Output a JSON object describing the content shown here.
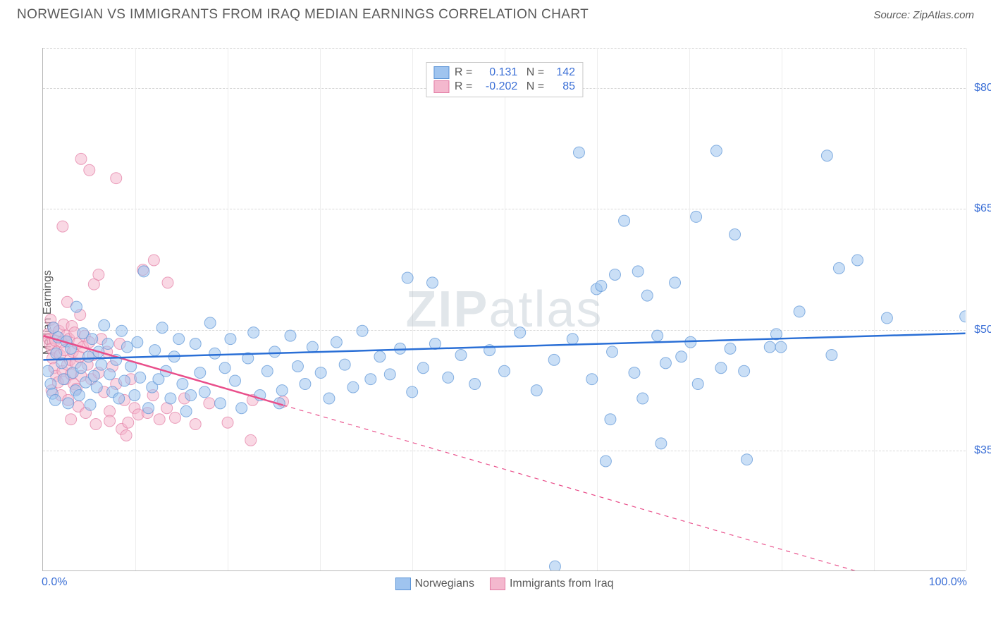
{
  "title": "NORWEGIAN VS IMMIGRANTS FROM IRAQ MEDIAN EARNINGS CORRELATION CHART",
  "source": "Source: ZipAtlas.com",
  "watermark_a": "ZIP",
  "watermark_b": "atlas",
  "chart": {
    "type": "scatter",
    "ylabel": "Median Earnings",
    "xlim": [
      0,
      100
    ],
    "ylim": [
      20000,
      85000
    ],
    "x_ticks_minor": [
      0,
      10,
      20,
      30,
      40,
      50,
      60,
      70,
      80,
      90,
      100
    ],
    "y_ticks": [
      35000,
      50000,
      65000,
      80000
    ],
    "y_tick_labels": [
      "$35,000",
      "$50,000",
      "$65,000",
      "$80,000"
    ],
    "x_min_label": "0.0%",
    "x_max_label": "100.0%",
    "background_color": "#ffffff",
    "grid_color_h": "#d8d8d8",
    "grid_color_v": "#ededed",
    "axis_color": "#b8b8b8",
    "tick_label_color": "#3b6fd6",
    "marker_radius": 8,
    "marker_opacity": 0.55,
    "trend_line_width": 2.5,
    "series": [
      {
        "name": "Norwegians",
        "color_fill": "#9fc4ef",
        "color_stroke": "#5a93d6",
        "trend_color": "#2a6fd6",
        "trend_dash": "none",
        "R": "0.131",
        "N": "142",
        "trend": {
          "x1": 0,
          "y1": 46200,
          "x2": 100,
          "y2": 49500
        },
        "points": [
          [
            0.5,
            44800
          ],
          [
            0.8,
            43200
          ],
          [
            1.0,
            42000
          ],
          [
            1.1,
            50200
          ],
          [
            1.3,
            41200
          ],
          [
            1.4,
            47000
          ],
          [
            1.6,
            49000
          ],
          [
            2.0,
            45800
          ],
          [
            2.2,
            43800
          ],
          [
            2.5,
            48500
          ],
          [
            2.7,
            40800
          ],
          [
            3.0,
            47600
          ],
          [
            3.2,
            44600
          ],
          [
            3.5,
            42400
          ],
          [
            3.6,
            52800
          ],
          [
            3.9,
            41800
          ],
          [
            4.1,
            45200
          ],
          [
            4.3,
            49500
          ],
          [
            4.6,
            43400
          ],
          [
            4.9,
            46600
          ],
          [
            5.1,
            40600
          ],
          [
            5.3,
            48800
          ],
          [
            5.5,
            44200
          ],
          [
            5.8,
            42800
          ],
          [
            6.0,
            47200
          ],
          [
            6.3,
            45600
          ],
          [
            6.6,
            50500
          ],
          [
            7.0,
            48200
          ],
          [
            7.2,
            44400
          ],
          [
            7.5,
            42200
          ],
          [
            7.9,
            46200
          ],
          [
            8.2,
            41400
          ],
          [
            8.5,
            49800
          ],
          [
            8.8,
            43600
          ],
          [
            9.1,
            47800
          ],
          [
            9.5,
            45400
          ],
          [
            9.9,
            41800
          ],
          [
            10.2,
            48400
          ],
          [
            10.5,
            44000
          ],
          [
            10.9,
            57200
          ],
          [
            11.4,
            40200
          ],
          [
            11.8,
            42800
          ],
          [
            12.1,
            47400
          ],
          [
            12.5,
            43800
          ],
          [
            12.9,
            50200
          ],
          [
            13.3,
            44800
          ],
          [
            13.8,
            41400
          ],
          [
            14.2,
            46600
          ],
          [
            14.7,
            48800
          ],
          [
            15.1,
            43200
          ],
          [
            15.5,
            39800
          ],
          [
            16.0,
            41800
          ],
          [
            16.5,
            48200
          ],
          [
            17.0,
            44600
          ],
          [
            17.5,
            42200
          ],
          [
            18.1,
            50800
          ],
          [
            18.6,
            47000
          ],
          [
            19.2,
            40800
          ],
          [
            19.7,
            45200
          ],
          [
            20.3,
            48800
          ],
          [
            20.8,
            43600
          ],
          [
            21.5,
            40200
          ],
          [
            22.2,
            46400
          ],
          [
            22.8,
            49600
          ],
          [
            23.5,
            41800
          ],
          [
            24.3,
            44800
          ],
          [
            25.1,
            47200
          ],
          [
            25.6,
            40800
          ],
          [
            25.9,
            42400
          ],
          [
            26.8,
            49200
          ],
          [
            27.6,
            45400
          ],
          [
            28.4,
            43200
          ],
          [
            29.2,
            47800
          ],
          [
            30.1,
            44600
          ],
          [
            31.0,
            41400
          ],
          [
            31.8,
            48400
          ],
          [
            32.7,
            45600
          ],
          [
            33.6,
            42800
          ],
          [
            34.6,
            49800
          ],
          [
            35.5,
            43800
          ],
          [
            36.5,
            46600
          ],
          [
            37.6,
            44400
          ],
          [
            38.7,
            47600
          ],
          [
            39.5,
            56400
          ],
          [
            40.0,
            42200
          ],
          [
            41.2,
            45200
          ],
          [
            42.2,
            55800
          ],
          [
            42.5,
            48200
          ],
          [
            43.9,
            44000
          ],
          [
            45.3,
            46800
          ],
          [
            46.8,
            43200
          ],
          [
            48.4,
            47400
          ],
          [
            50.0,
            44800
          ],
          [
            51.7,
            49600
          ],
          [
            53.5,
            42400
          ],
          [
            55.4,
            46200
          ],
          [
            55.5,
            20500
          ],
          [
            57.4,
            48800
          ],
          [
            58.1,
            72000
          ],
          [
            59.5,
            43800
          ],
          [
            60.0,
            55000
          ],
          [
            60.5,
            55400
          ],
          [
            61.0,
            33600
          ],
          [
            61.5,
            38800
          ],
          [
            61.7,
            47200
          ],
          [
            62.0,
            56800
          ],
          [
            63.0,
            63500
          ],
          [
            64.1,
            44600
          ],
          [
            64.5,
            57200
          ],
          [
            65.0,
            41400
          ],
          [
            65.5,
            54200
          ],
          [
            66.6,
            49200
          ],
          [
            67.0,
            35800
          ],
          [
            67.5,
            45800
          ],
          [
            68.5,
            55800
          ],
          [
            69.2,
            46600
          ],
          [
            70.2,
            48400
          ],
          [
            70.8,
            64000
          ],
          [
            71.0,
            43200
          ],
          [
            73.0,
            72200
          ],
          [
            73.5,
            45200
          ],
          [
            74.5,
            47600
          ],
          [
            75.0,
            61800
          ],
          [
            76.0,
            44800
          ],
          [
            76.3,
            33800
          ],
          [
            78.8,
            47800
          ],
          [
            79.5,
            49400
          ],
          [
            80.0,
            47800
          ],
          [
            82.0,
            52200
          ],
          [
            85.0,
            71600
          ],
          [
            85.5,
            46800
          ],
          [
            86.3,
            57600
          ],
          [
            88.3,
            58600
          ],
          [
            91.5,
            51400
          ],
          [
            100.0,
            51600
          ]
        ]
      },
      {
        "name": "Immigrants from Iraq",
        "color_fill": "#f4b8ce",
        "color_stroke": "#e27aa3",
        "trend_color": "#e94e8a",
        "trend_dash": "solid-then-dash",
        "R": "-0.202",
        "N": "85",
        "trend": {
          "x1": 0,
          "y1": 49200,
          "x2": 100,
          "y2": 16000
        },
        "trend_solid_until_x": 26,
        "points": [
          [
            0.5,
            49400
          ],
          [
            0.6,
            48800
          ],
          [
            0.7,
            48200
          ],
          [
            0.8,
            51200
          ],
          [
            0.9,
            47600
          ],
          [
            0.9,
            42400
          ],
          [
            1.0,
            46400
          ],
          [
            1.1,
            50200
          ],
          [
            1.2,
            45200
          ],
          [
            1.3,
            48600
          ],
          [
            1.4,
            44200
          ],
          [
            1.5,
            47200
          ],
          [
            1.6,
            43400
          ],
          [
            1.7,
            49800
          ],
          [
            1.8,
            46800
          ],
          [
            1.9,
            41800
          ],
          [
            2.0,
            48400
          ],
          [
            2.1,
            44800
          ],
          [
            2.1,
            62800
          ],
          [
            2.2,
            50600
          ],
          [
            2.3,
            47400
          ],
          [
            2.4,
            43800
          ],
          [
            2.5,
            49200
          ],
          [
            2.6,
            45600
          ],
          [
            2.6,
            53400
          ],
          [
            2.7,
            41200
          ],
          [
            2.8,
            48800
          ],
          [
            2.9,
            46200
          ],
          [
            3.0,
            38800
          ],
          [
            3.0,
            44400
          ],
          [
            3.1,
            50400
          ],
          [
            3.2,
            47200
          ],
          [
            3.3,
            43200
          ],
          [
            3.4,
            49600
          ],
          [
            3.5,
            45800
          ],
          [
            3.6,
            42600
          ],
          [
            3.7,
            48200
          ],
          [
            3.8,
            40400
          ],
          [
            3.9,
            46600
          ],
          [
            4.0,
            51800
          ],
          [
            4.1,
            44200
          ],
          [
            4.1,
            71200
          ],
          [
            4.3,
            47800
          ],
          [
            4.5,
            49200
          ],
          [
            4.6,
            39600
          ],
          [
            4.8,
            45600
          ],
          [
            5.0,
            69800
          ],
          [
            5.0,
            48400
          ],
          [
            5.2,
            43800
          ],
          [
            5.4,
            46800
          ],
          [
            5.5,
            55600
          ],
          [
            5.7,
            38200
          ],
          [
            6.0,
            56800
          ],
          [
            6.0,
            44600
          ],
          [
            6.3,
            48800
          ],
          [
            6.6,
            42200
          ],
          [
            6.9,
            47200
          ],
          [
            7.2,
            39800
          ],
          [
            7.2,
            38600
          ],
          [
            7.5,
            45400
          ],
          [
            7.9,
            68800
          ],
          [
            7.9,
            43200
          ],
          [
            8.3,
            48200
          ],
          [
            8.5,
            37600
          ],
          [
            8.8,
            41200
          ],
          [
            9.0,
            36800
          ],
          [
            9.2,
            38400
          ],
          [
            9.5,
            43800
          ],
          [
            9.9,
            40200
          ],
          [
            10.3,
            39400
          ],
          [
            10.8,
            57400
          ],
          [
            11.3,
            39600
          ],
          [
            11.9,
            41800
          ],
          [
            12.0,
            58600
          ],
          [
            12.6,
            38800
          ],
          [
            13.4,
            40200
          ],
          [
            13.5,
            55800
          ],
          [
            14.3,
            39000
          ],
          [
            15.3,
            41400
          ],
          [
            16.5,
            38200
          ],
          [
            18.0,
            40800
          ],
          [
            20.0,
            38400
          ],
          [
            22.5,
            36200
          ],
          [
            22.7,
            41200
          ],
          [
            26.0,
            41000
          ]
        ]
      }
    ],
    "legend_bottom": [
      {
        "label": "Norwegians",
        "fill": "#9fc4ef",
        "stroke": "#5a93d6"
      },
      {
        "label": "Immigrants from Iraq",
        "fill": "#f4b8ce",
        "stroke": "#e27aa3"
      }
    ]
  }
}
